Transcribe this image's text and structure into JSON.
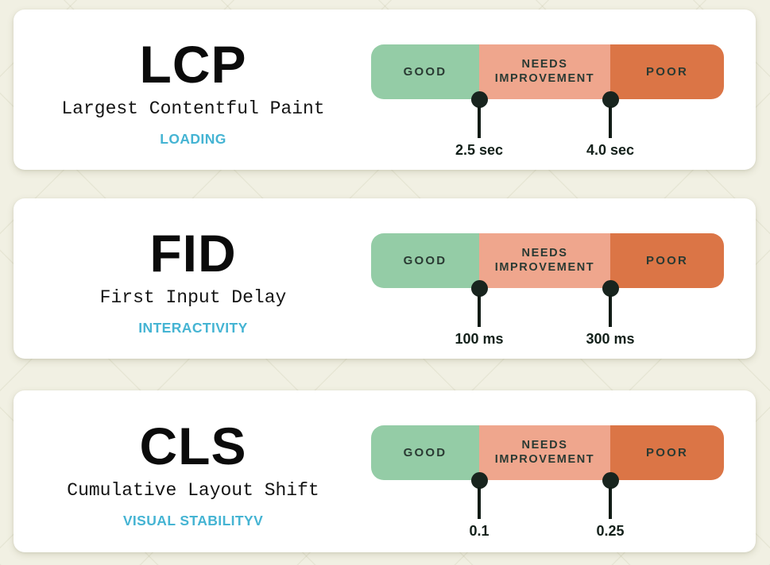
{
  "colors": {
    "page_background": "#f1f0e3",
    "card_background": "#ffffff",
    "good_segment": "#94cca6",
    "needs_segment": "#efa68d",
    "poor_segment": "#db7546",
    "marker_dot": "#18241e",
    "marker_stem": "#101b15",
    "segment_label_text": "#2a3a33",
    "threshold_label_text": "#13201a",
    "category_text": "#45b4d3",
    "title_text": "#0b0b0b"
  },
  "scale_labels": {
    "good": "GOOD",
    "needs_line1": "NEEDS",
    "needs_line2": "IMPROVEMENT",
    "poor": "POOR"
  },
  "cards": [
    {
      "abbr": "LCP",
      "full_name": "Largest Contentful Paint",
      "category": "LOADING",
      "threshold1": "2.5 sec",
      "threshold2": "4.0 sec"
    },
    {
      "abbr": "FID",
      "full_name": "First Input Delay",
      "category": "INTERACTIVITY",
      "threshold1": "100 ms",
      "threshold2": "300 ms"
    },
    {
      "abbr": "CLS",
      "full_name": "Cumulative Layout Shift",
      "category": "VISUAL STABILITYV",
      "threshold1": "0.1",
      "threshold2": "0.25"
    }
  ]
}
